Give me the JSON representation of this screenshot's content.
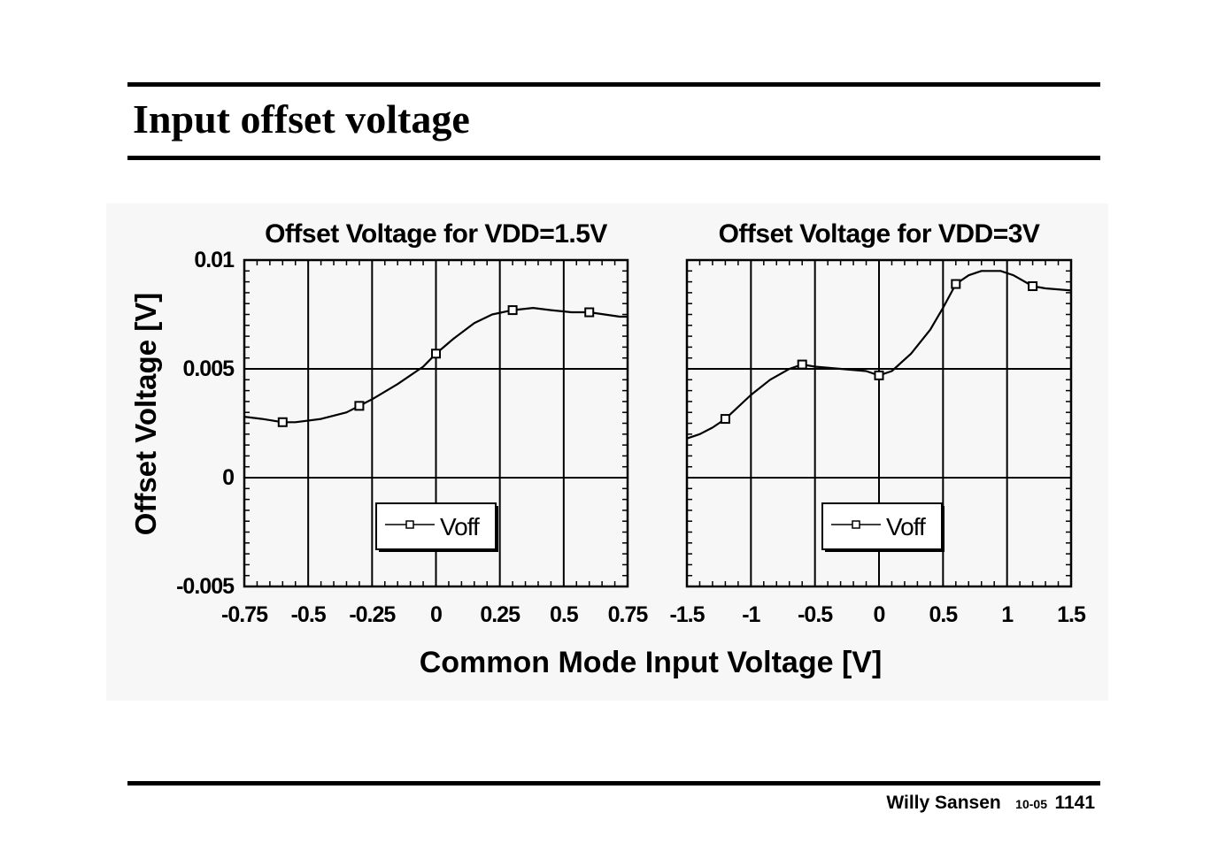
{
  "slide": {
    "title": "Input offset voltage",
    "footer": {
      "author": "Willy Sansen",
      "date": "10-05",
      "page": "1141"
    }
  },
  "chart_data": {
    "shared": {
      "xlabel": "Common Mode Input Voltage [V]",
      "ylabel": "Offset Voltage [V]",
      "ylim": [
        -0.005,
        0.01
      ],
      "yticks": [
        -0.005,
        0,
        0.005,
        0.01
      ],
      "ytick_labels": [
        "-0.005",
        "0",
        "0.005",
        "0.01"
      ]
    },
    "charts": [
      {
        "type": "line",
        "title": "Offset Voltage for VDD=1.5V",
        "xlim": [
          -0.75,
          0.75
        ],
        "xticks": [
          -0.75,
          -0.5,
          -0.25,
          0,
          0.25,
          0.5,
          0.75
        ],
        "xtick_labels": [
          "-0.75",
          "-0.5",
          "-0.25",
          "0",
          "0.25",
          "0.5",
          "0.75"
        ],
        "legend": "Voff",
        "series": [
          {
            "name": "Voff",
            "x": [
              -0.75,
              -0.68,
              -0.6,
              -0.55,
              -0.45,
              -0.35,
              -0.3,
              -0.25,
              -0.15,
              -0.05,
              0.0,
              0.07,
              0.15,
              0.22,
              0.3,
              0.38,
              0.45,
              0.53,
              0.6,
              0.66,
              0.72,
              0.75
            ],
            "y": [
              0.0028,
              0.0027,
              0.00255,
              0.00255,
              0.0027,
              0.003,
              0.0033,
              0.0036,
              0.0043,
              0.0051,
              0.0057,
              0.0064,
              0.0071,
              0.0075,
              0.0077,
              0.0078,
              0.0077,
              0.0076,
              0.0076,
              0.0075,
              0.0074,
              0.0074
            ],
            "markers_x": [
              -0.6,
              -0.3,
              0.0,
              0.3,
              0.6
            ],
            "markers_y": [
              0.00255,
              0.0033,
              0.0057,
              0.0077,
              0.0076
            ]
          }
        ]
      },
      {
        "type": "line",
        "title": "Offset Voltage for VDD=3V",
        "xlim": [
          -1.5,
          1.5
        ],
        "xticks": [
          -1.5,
          -1,
          -0.5,
          0,
          0.5,
          1,
          1.5
        ],
        "xtick_labels": [
          "-1.5",
          "-1",
          "-0.5",
          "0",
          "0.5",
          "1",
          "1.5"
        ],
        "legend": "Voff",
        "series": [
          {
            "name": "Voff",
            "x": [
              -1.5,
              -1.4,
              -1.3,
              -1.2,
              -1.0,
              -0.85,
              -0.7,
              -0.6,
              -0.5,
              -0.3,
              -0.1,
              0.0,
              0.1,
              0.25,
              0.4,
              0.5,
              0.6,
              0.7,
              0.8,
              0.95,
              1.05,
              1.2,
              1.3,
              1.5
            ],
            "y": [
              0.0018,
              0.002,
              0.0023,
              0.0027,
              0.0038,
              0.0045,
              0.005,
              0.0052,
              0.0051,
              0.005,
              0.0049,
              0.0047,
              0.0049,
              0.0057,
              0.0068,
              0.0078,
              0.0089,
              0.0093,
              0.0095,
              0.0095,
              0.0093,
              0.0088,
              0.0087,
              0.0086
            ],
            "markers_x": [
              -1.2,
              -0.6,
              0.0,
              0.6,
              1.2
            ],
            "markers_y": [
              0.0027,
              0.0052,
              0.0047,
              0.0089,
              0.0088
            ]
          }
        ]
      }
    ]
  }
}
